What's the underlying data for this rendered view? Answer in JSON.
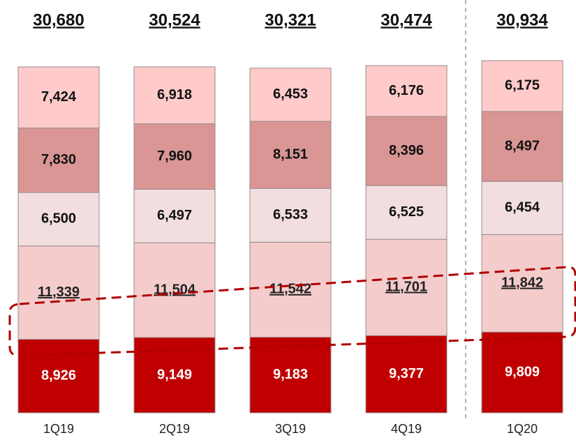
{
  "chart_data": {
    "type": "stacked_bar",
    "categories": [
      "1Q19",
      "2Q19",
      "3Q19",
      "4Q19",
      "1Q20"
    ],
    "series": [
      {
        "color": "#c00000",
        "text_color": "#ffffff",
        "values": [
          8926,
          9149,
          9183,
          9377,
          9809
        ],
        "value_labels": [
          "8,926",
          "9,149",
          "9,183",
          "9,377",
          "9,809"
        ]
      },
      {
        "color": "#f4cccc",
        "text_color": "#222222",
        "underline": true,
        "values": [
          11339,
          11504,
          11542,
          11701,
          11842
        ],
        "value_labels": [
          "11,339",
          "11,504",
          "11,542",
          "11,701",
          "11,842"
        ]
      },
      {
        "color": "#f2dede",
        "text_color": "#111111",
        "values": [
          6500,
          6497,
          6533,
          6525,
          6454
        ],
        "value_labels": [
          "6,500",
          "6,497",
          "6,533",
          "6,525",
          "6,454"
        ]
      },
      {
        "color": "#d99694",
        "text_color": "#111111",
        "values": [
          7830,
          7960,
          8151,
          8396,
          8497
        ],
        "value_labels": [
          "7,830",
          "7,960",
          "8,151",
          "8,396",
          "8,497"
        ]
      },
      {
        "color": "#ffcaca",
        "text_color": "#111111",
        "values": [
          7424,
          6918,
          6453,
          6176,
          6175
        ],
        "value_labels": [
          "7,424",
          "6,918",
          "6,453",
          "6,176",
          "6,175"
        ]
      }
    ],
    "totals": {
      "values": [
        30680,
        30524,
        30321,
        30474,
        30934
      ],
      "value_labels": [
        "30,680",
        "30,524",
        "30,321",
        "30,474",
        "30,934"
      ]
    }
  }
}
